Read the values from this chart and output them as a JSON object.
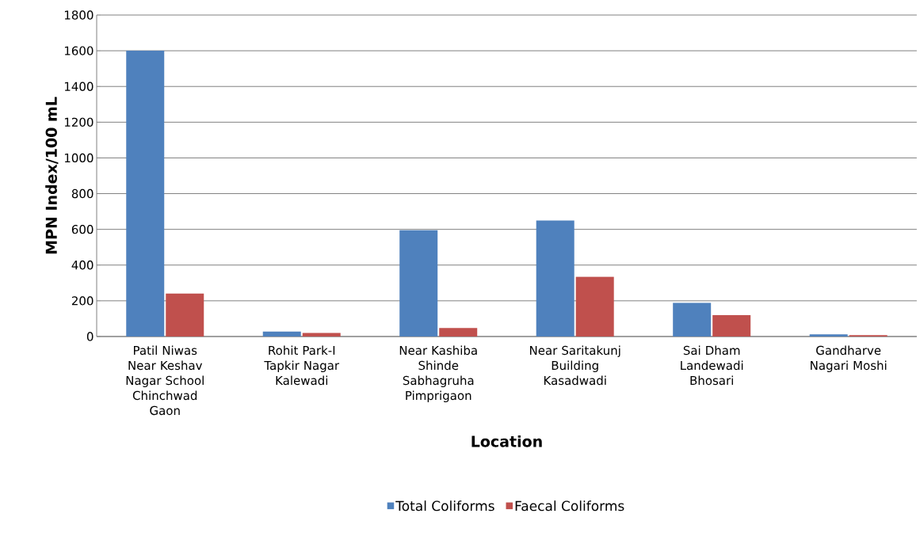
{
  "chart_data": {
    "type": "bar",
    "xlabel": "Location",
    "ylabel": "MPN Index/100 mL",
    "categories": [
      "Patil Niwas Near Keshav Nagar School Chinchwad Gaon",
      "Rohit Park-I Tapkir Nagar Kalewadi",
      "Near Kashiba Shinde Sabhagruha Pimprigaon",
      "Near Saritakunj Building Kasadwadi",
      "Sai Dham Landewadi Bhosari",
      "Gandharve Nagari Moshi"
    ],
    "series": [
      {
        "name": "Total Coliforms",
        "color": "#4f81bd",
        "values": [
          1600,
          28,
          595,
          650,
          188,
          12
        ]
      },
      {
        "name": "Faecal Coliforms",
        "color": "#c0504d",
        "values": [
          240,
          20,
          48,
          335,
          120,
          8
        ]
      }
    ],
    "ylim": [
      0,
      1800
    ],
    "yticks": [
      0,
      200,
      400,
      600,
      800,
      1000,
      1200,
      1400,
      1600,
      1800
    ],
    "grid": "y",
    "legend": "bottom"
  }
}
